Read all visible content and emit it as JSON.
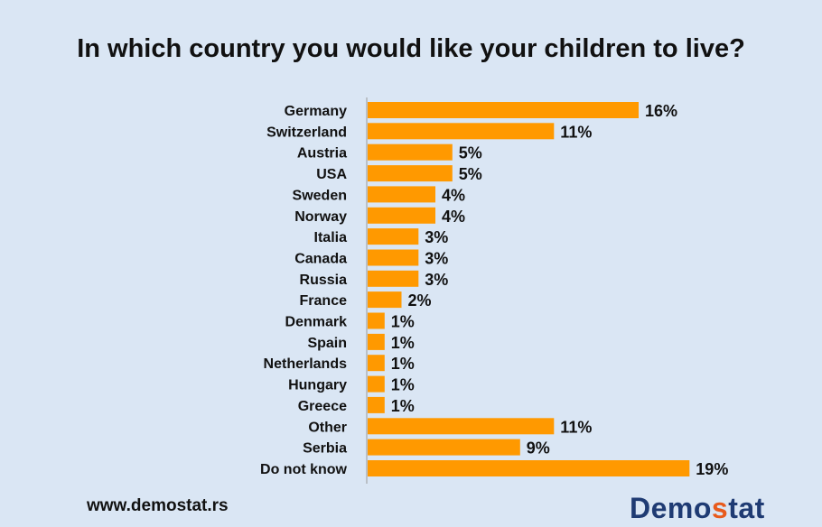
{
  "chart_data": {
    "type": "bar",
    "orientation": "horizontal",
    "title": "In which country you would like your children to live?",
    "categories": [
      "Germany",
      "Switzerland",
      "Austria",
      "USA",
      "Sweden",
      "Norway",
      "Italia",
      "Canada",
      "Russia",
      "France",
      "Denmark",
      "Spain",
      "Netherlands",
      "Hungary",
      "Greece",
      "Other",
      "Serbia",
      "Do not know"
    ],
    "values": [
      16,
      11,
      5,
      5,
      4,
      4,
      3,
      3,
      3,
      2,
      1,
      1,
      1,
      1,
      1,
      11,
      9,
      19
    ],
    "value_labels": [
      "16%",
      "11%",
      "5%",
      "5%",
      "4%",
      "4%",
      "3%",
      "3%",
      "3%",
      "2%",
      "1%",
      "1%",
      "1%",
      "1%",
      "1%",
      "11%",
      "9%",
      "19%"
    ],
    "xlim": [
      0,
      20
    ],
    "grid": false,
    "bar_color": "#ff9900"
  },
  "footer": {
    "url": "www.demostat.rs",
    "logo_pre": "Demo",
    "logo_accent": "s",
    "logo_post": "tat"
  },
  "colors": {
    "background": "#dae6f4",
    "bar": "#ff9900",
    "logo": "#1f3b73",
    "logo_accent": "#e85a1c"
  }
}
